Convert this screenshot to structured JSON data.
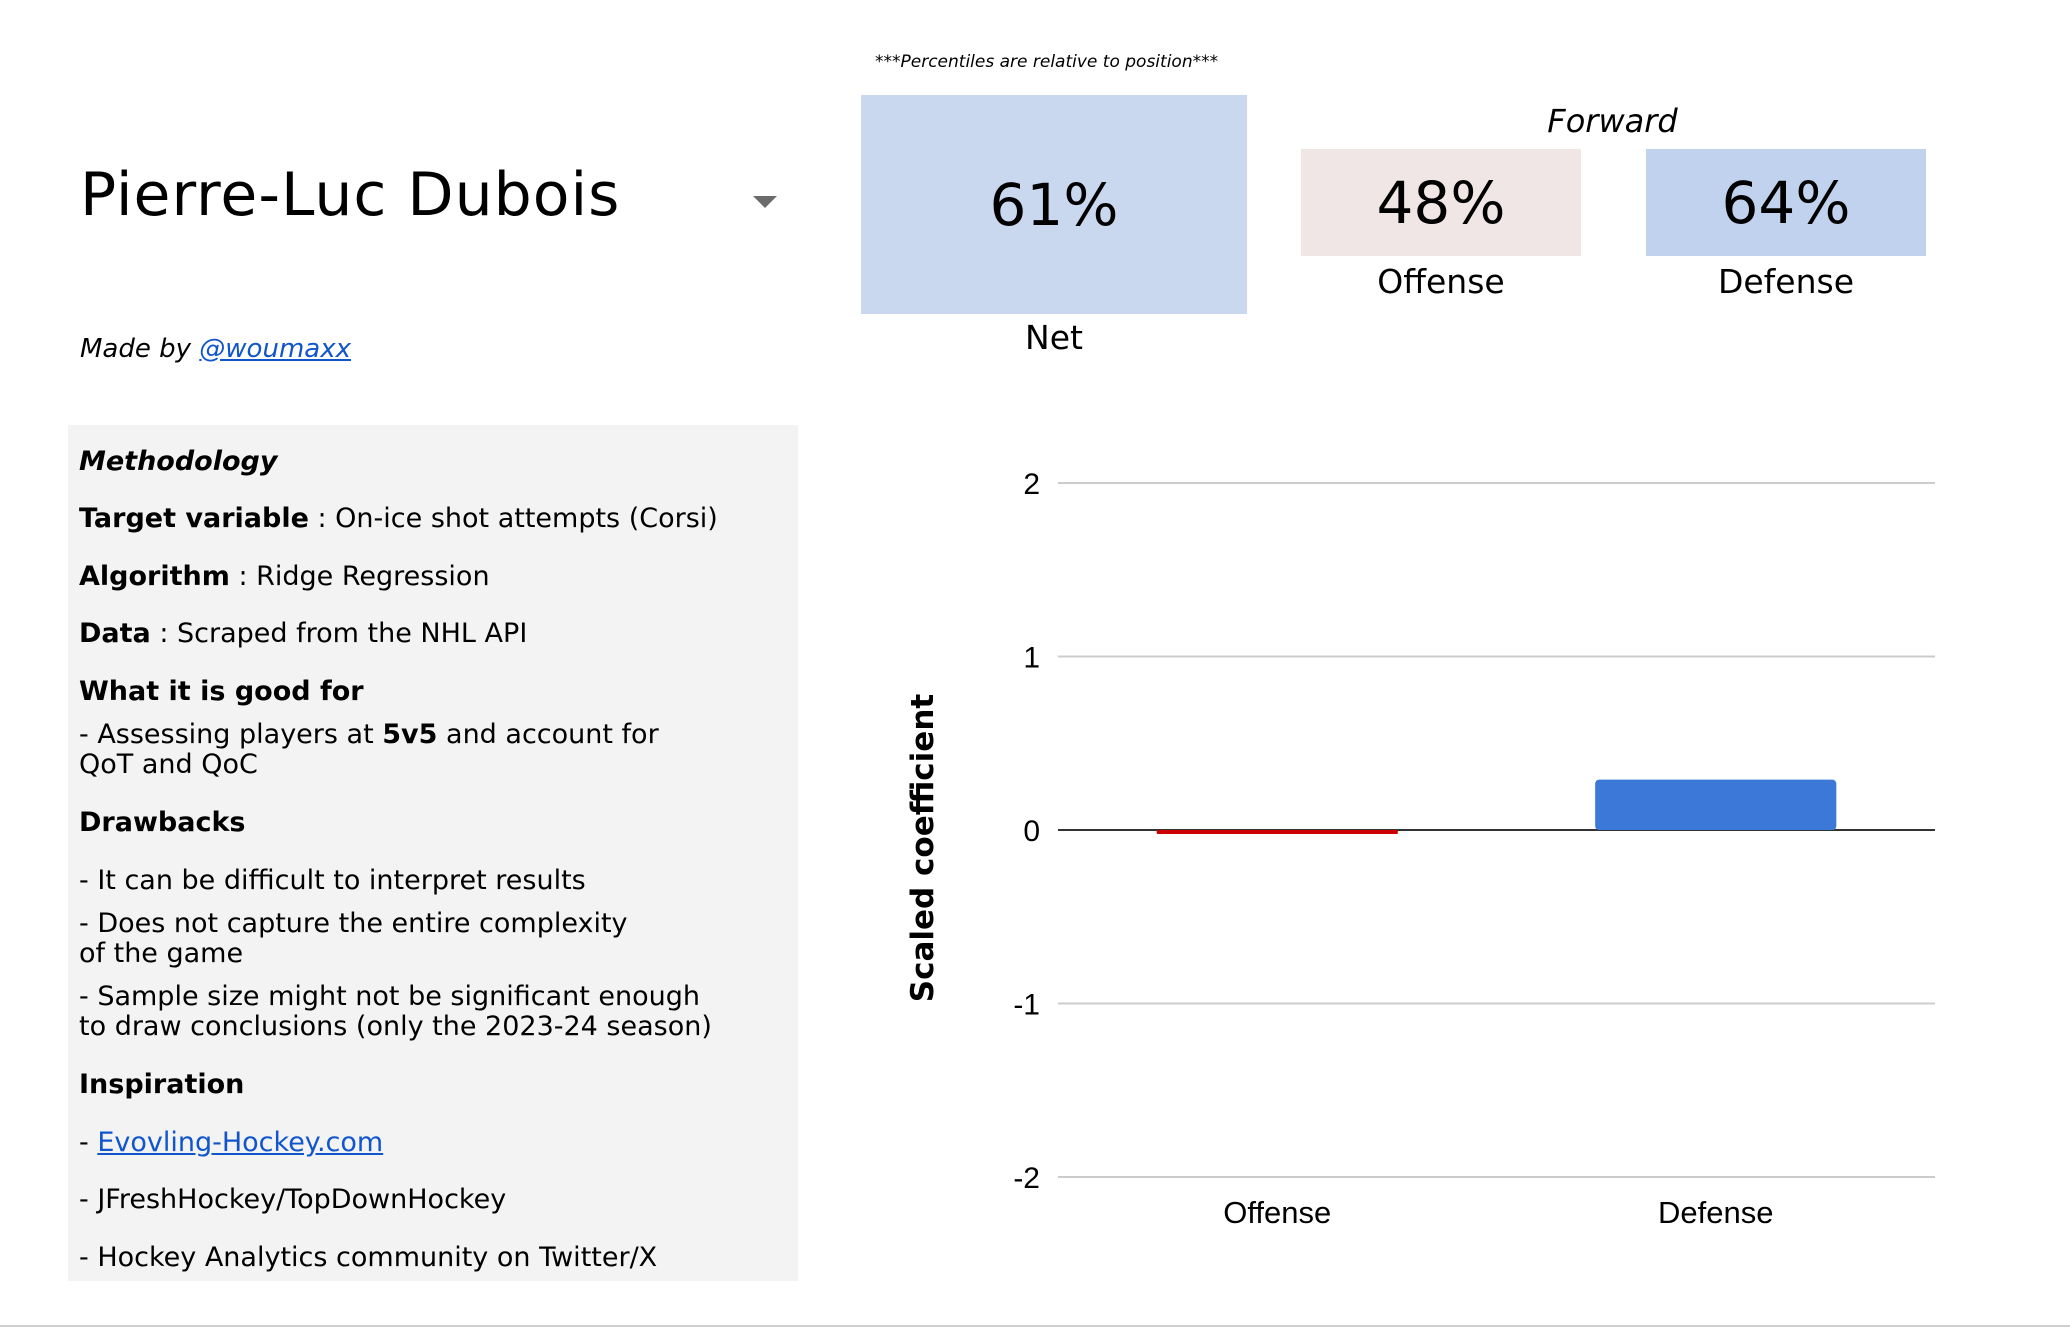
{
  "player": {
    "name": "Pierre-Luc Dubois",
    "made_by_prefix": "Made by ",
    "made_by_handle": "@woumaxx"
  },
  "note": "***Percentiles are relative to position***",
  "position": "Forward",
  "percentiles": {
    "net": {
      "value": "61%",
      "label": "Net"
    },
    "offense": {
      "value": "48%",
      "label": "Offense"
    },
    "defense": {
      "value": "64%",
      "label": "Defense"
    }
  },
  "methodology": {
    "title": "Methodology",
    "target_label": "Target variable",
    "target_value": " : On-ice shot attempts (Corsi)",
    "algorithm_label": "Algorithm",
    "algorithm_value": " : Ridge Regression",
    "data_label": "Data",
    "data_value": " : Scraped from the NHL API",
    "good_for_title": "What it is good for",
    "good_for_1a": "- Assessing players at ",
    "good_for_1b": "5v5",
    "good_for_1c": " and account for",
    "good_for_2": "QoT and QoC",
    "drawbacks_title": "Drawbacks",
    "drawback_1": "- It can be difficult to interpret results",
    "drawback_2a": "- Does not capture the entire complexity",
    "drawback_2b": "of the game",
    "drawback_3a": "- Sample size might not be significant enough",
    "drawback_3b": "to draw conclusions (only the 2023-24 season)",
    "inspiration_title": "Inspiration",
    "inspiration_1_prefix": "- ",
    "inspiration_1_link": "Evovling-Hockey.com",
    "inspiration_2": "- JFreshHockey/TopDownHockey",
    "inspiration_3": "- Hockey Analytics community on Twitter/X"
  },
  "colors": {
    "net_tile": "#c9d8ee",
    "offense_tile": "#efe6e5",
    "defense_tile": "#c0d2ed",
    "offense_bar": "#cc0000",
    "defense_bar": "#3c78d8",
    "link": "#1155cc"
  },
  "chart_data": {
    "type": "bar",
    "categories": [
      "Offense",
      "Defense"
    ],
    "values": [
      -0.02,
      0.29
    ],
    "ylabel": "Scaled coefficient",
    "xlabel": "",
    "ylim": [
      -2,
      2
    ],
    "yticks": [
      2,
      1,
      0,
      -1,
      -2
    ],
    "grid": true,
    "legend": "none"
  }
}
